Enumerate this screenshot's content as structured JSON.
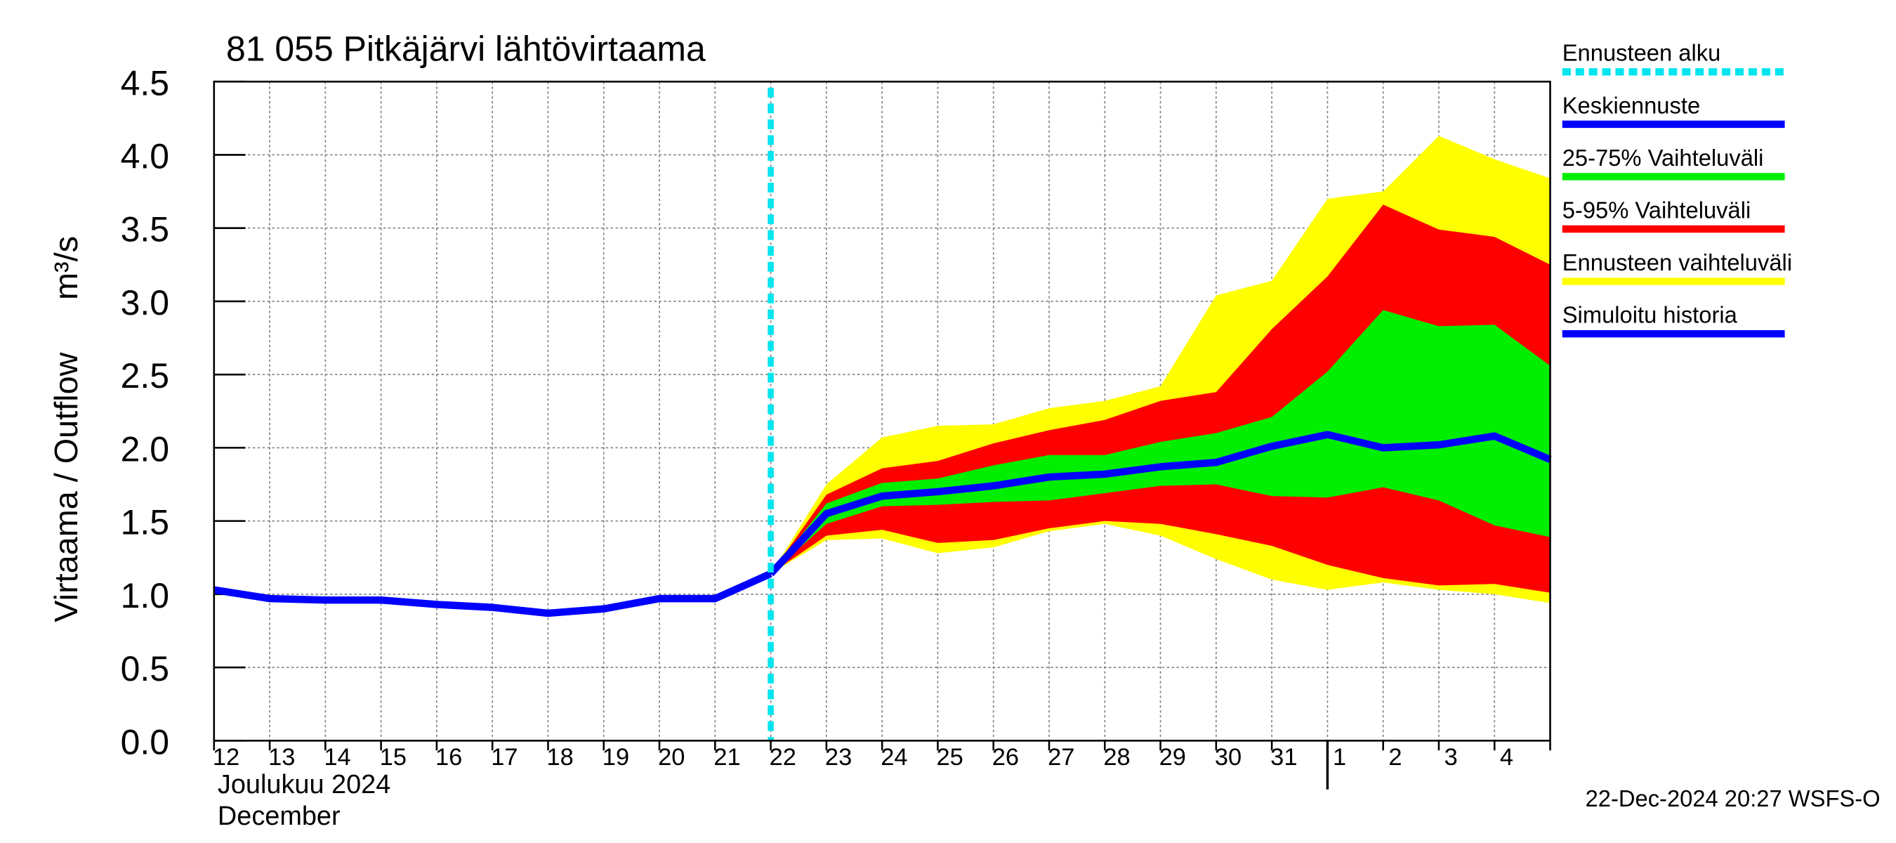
{
  "chart_data": {
    "type": "line",
    "title": "81 055 Pitkäjärvi lähtövirtaama",
    "y_label": "Virtaama / Outflow",
    "y_unit": "m³/s",
    "x_label": "Joulukuu  2024",
    "x_label2": "December",
    "footer": "22-Dec-2024 20:27 WSFS-O",
    "categories": [
      "12",
      "13",
      "14",
      "15",
      "16",
      "17",
      "18",
      "19",
      "20",
      "21",
      "22",
      "23",
      "24",
      "25",
      "26",
      "27",
      "28",
      "29",
      "30",
      "31",
      "1",
      "2",
      "3",
      "4",
      null
    ],
    "month_start": "1",
    "forecast_start": "22",
    "ylim": [
      0,
      4.5
    ],
    "yticks": [
      {
        "value": 0,
        "label": "0.0"
      },
      0.5,
      {
        "value": 1,
        "label": "1.0"
      },
      1.5,
      {
        "value": 2,
        "label": "2.0"
      },
      2.5,
      {
        "value": 3,
        "label": "3.0"
      },
      3.5,
      {
        "value": 4,
        "label": "4.0"
      },
      4.5
    ],
    "grid": true,
    "forecast_marker": {
      "name": "Ennusteen alku",
      "color": "#00e5ee"
    },
    "bands": [
      {
        "name": "Ennusteen vaihteluväli",
        "color": "#ffff00",
        "upper": [
          null,
          null,
          null,
          null,
          null,
          null,
          null,
          null,
          null,
          null,
          1.14,
          1.75,
          2.07,
          2.15,
          2.16,
          2.27,
          2.32,
          2.42,
          3.04,
          3.14,
          3.7,
          3.75,
          4.13,
          3.97,
          3.84
        ],
        "lower": [
          null,
          null,
          null,
          null,
          null,
          null,
          null,
          null,
          null,
          null,
          1.14,
          1.37,
          1.38,
          1.28,
          1.32,
          1.43,
          1.48,
          1.4,
          1.24,
          1.1,
          1.03,
          1.08,
          1.03,
          1,
          0.94
        ]
      },
      {
        "name": "5-95% Vaihteluväli",
        "color": "#ff0000",
        "upper": [
          null,
          null,
          null,
          null,
          null,
          null,
          null,
          null,
          null,
          null,
          1.14,
          1.68,
          1.86,
          1.91,
          2.03,
          2.12,
          2.19,
          2.32,
          2.38,
          2.81,
          3.17,
          3.66,
          3.49,
          3.44,
          3.25
        ],
        "lower": [
          null,
          null,
          null,
          null,
          null,
          null,
          null,
          null,
          null,
          null,
          1.14,
          1.4,
          1.44,
          1.35,
          1.37,
          1.45,
          1.5,
          1.48,
          1.41,
          1.33,
          1.2,
          1.11,
          1.06,
          1.07,
          1.01
        ]
      },
      {
        "name": "25-75% Vaihteluväli",
        "color": "#00ee00",
        "upper": [
          null,
          null,
          null,
          null,
          null,
          null,
          null,
          null,
          null,
          null,
          1.14,
          1.62,
          1.76,
          1.79,
          1.88,
          1.95,
          1.95,
          2.04,
          2.1,
          2.21,
          2.52,
          2.94,
          2.83,
          2.84,
          2.56
        ],
        "lower": [
          null,
          null,
          null,
          null,
          null,
          null,
          null,
          null,
          null,
          null,
          1.14,
          1.48,
          1.6,
          1.61,
          1.63,
          1.64,
          1.69,
          1.74,
          1.75,
          1.67,
          1.66,
          1.73,
          1.64,
          1.47,
          1.39
        ]
      }
    ],
    "series": [
      {
        "name": "Keskiennuste",
        "color": "#0000ff",
        "values": [
          null,
          null,
          null,
          null,
          null,
          null,
          null,
          null,
          null,
          null,
          1.14,
          1.55,
          1.67,
          1.7,
          1.74,
          1.8,
          1.82,
          1.87,
          1.9,
          2.01,
          2.09,
          2,
          2.02,
          2.08,
          1.92
        ]
      },
      {
        "name": "Simuloitu historia",
        "color": "#0000ff",
        "values": [
          1.03,
          0.97,
          0.96,
          0.96,
          0.93,
          0.91,
          0.87,
          0.9,
          0.97,
          0.97,
          1.14,
          null,
          null,
          null,
          null,
          null,
          null,
          null,
          null,
          null,
          null,
          null,
          null,
          null,
          null
        ]
      }
    ],
    "legend_order": [
      "Ennusteen alku",
      "Keskiennuste",
      "25-75% Vaihteluväli",
      "5-95% Vaihteluväli",
      "Ennusteen vaihteluväli",
      "Simuloitu historia"
    ]
  }
}
